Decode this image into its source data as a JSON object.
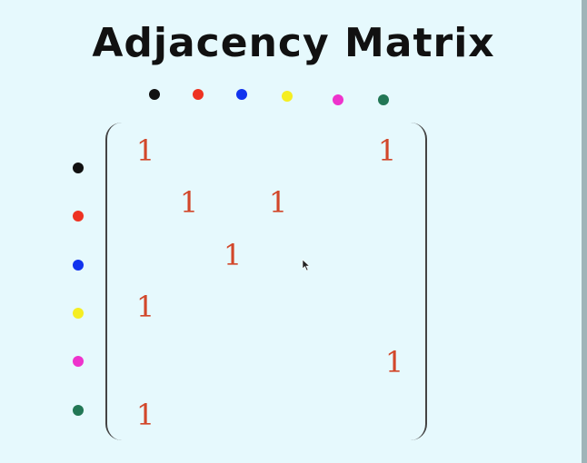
{
  "title": "Adjacency Matrix",
  "vertices": [
    {
      "name": "black",
      "color": "#111111"
    },
    {
      "name": "red",
      "color": "#ee3322"
    },
    {
      "name": "blue",
      "color": "#1133ee"
    },
    {
      "name": "yellow",
      "color": "#f5ee22"
    },
    {
      "name": "magenta",
      "color": "#ee33cc"
    },
    {
      "name": "green",
      "color": "#227755"
    }
  ],
  "matrix": [
    [
      "1",
      "",
      "",
      "",
      "",
      "1"
    ],
    [
      "",
      "1",
      "",
      "1",
      "",
      ""
    ],
    [
      "",
      "",
      "1",
      "",
      "",
      ""
    ],
    [
      "1",
      "",
      "",
      "",
      "",
      ""
    ],
    [
      "",
      "",
      "",
      "",
      "",
      "1"
    ],
    [
      "1",
      "",
      "",
      "",
      "",
      ""
    ]
  ]
}
